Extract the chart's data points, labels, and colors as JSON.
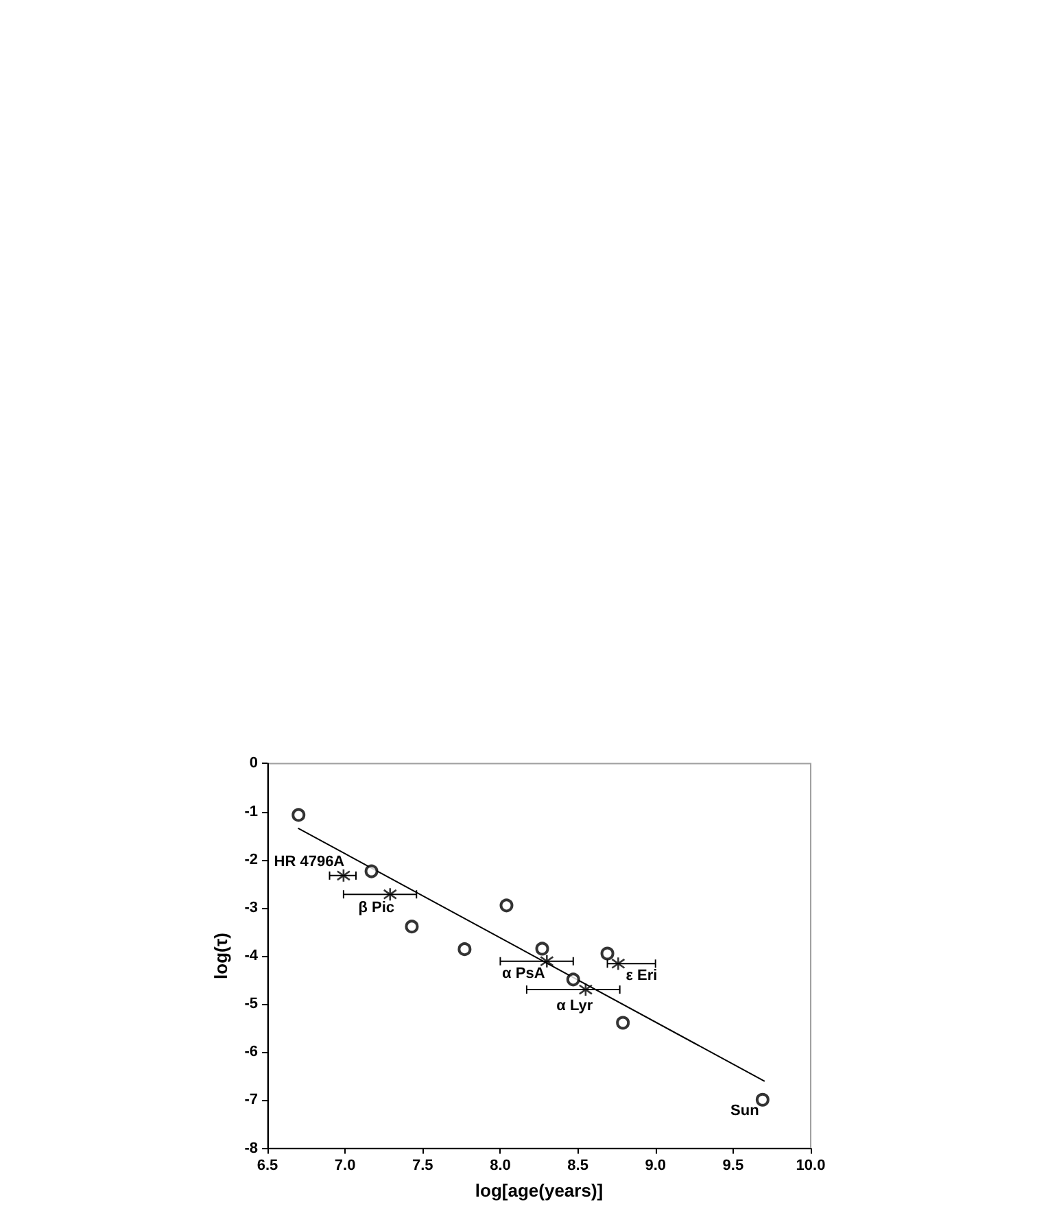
{
  "chart_data": {
    "type": "scatter",
    "xlabel": "log[age(years)]",
    "ylabel": "log(τ)",
    "xlim": [
      6.5,
      10
    ],
    "xticks": [
      {
        "value": 6.5,
        "label": "6.5"
      },
      {
        "value": 7,
        "label": "7.0"
      },
      {
        "value": 7.5,
        "label": "7.5"
      },
      {
        "value": 8,
        "label": "8.0"
      },
      {
        "value": 8.5,
        "label": "8.5"
      },
      {
        "value": 9,
        "label": "9.0"
      },
      {
        "value": 9.5,
        "label": "9.5"
      },
      {
        "value": 10,
        "label": "10.0"
      }
    ],
    "ylim": [
      -8,
      0
    ],
    "yticks": [
      -8,
      -7,
      -6,
      -5,
      -4,
      -3,
      -2,
      -1,
      0
    ],
    "grid": false,
    "series": [
      {
        "type": "scatter",
        "marker": "circle",
        "color": "#000000",
        "x": [
          6.7,
          7.17,
          7.43,
          7.77,
          8.04,
          8.27,
          8.47,
          8.69,
          8.79,
          9.69
        ],
        "values": [
          -1.07,
          -2.24,
          -3.39,
          -3.86,
          -2.95,
          -3.85,
          -4.49,
          -3.95,
          -5.39,
          -6.99
        ]
      },
      {
        "type": "scatter",
        "marker": "cross",
        "color": "#000000",
        "x": [
          6.99,
          7.29,
          8.3,
          8.55,
          8.76
        ],
        "values": [
          -2.33,
          -2.72,
          -4.11,
          -4.7,
          -4.16
        ],
        "xerrors": [
          [
            6.9,
            7.07
          ],
          [
            6.99,
            7.46
          ],
          [
            8.0,
            8.47
          ],
          [
            8.17,
            8.77
          ],
          [
            8.69,
            9.0
          ]
        ]
      },
      {
        "type": "line",
        "marker": "none",
        "line_style": "solid",
        "color": "#000000",
        "x": [
          6.7,
          9.7
        ],
        "values": [
          -1.35,
          -6.6
        ]
      }
    ],
    "annotations": [
      {
        "text": "HR 4796A",
        "x": 6.99,
        "y": -2.33
      },
      {
        "text": "β Pic",
        "x": 7.29,
        "y": -2.72
      },
      {
        "text": "α PsA",
        "x": 8.3,
        "y": -4.11
      },
      {
        "text": "α Lyr",
        "x": 8.55,
        "y": -4.7
      },
      {
        "text": "ε Eri",
        "x": 8.76,
        "y": -4.16
      },
      {
        "text": "Sun",
        "x": 9.69,
        "y": -6.99
      }
    ]
  }
}
